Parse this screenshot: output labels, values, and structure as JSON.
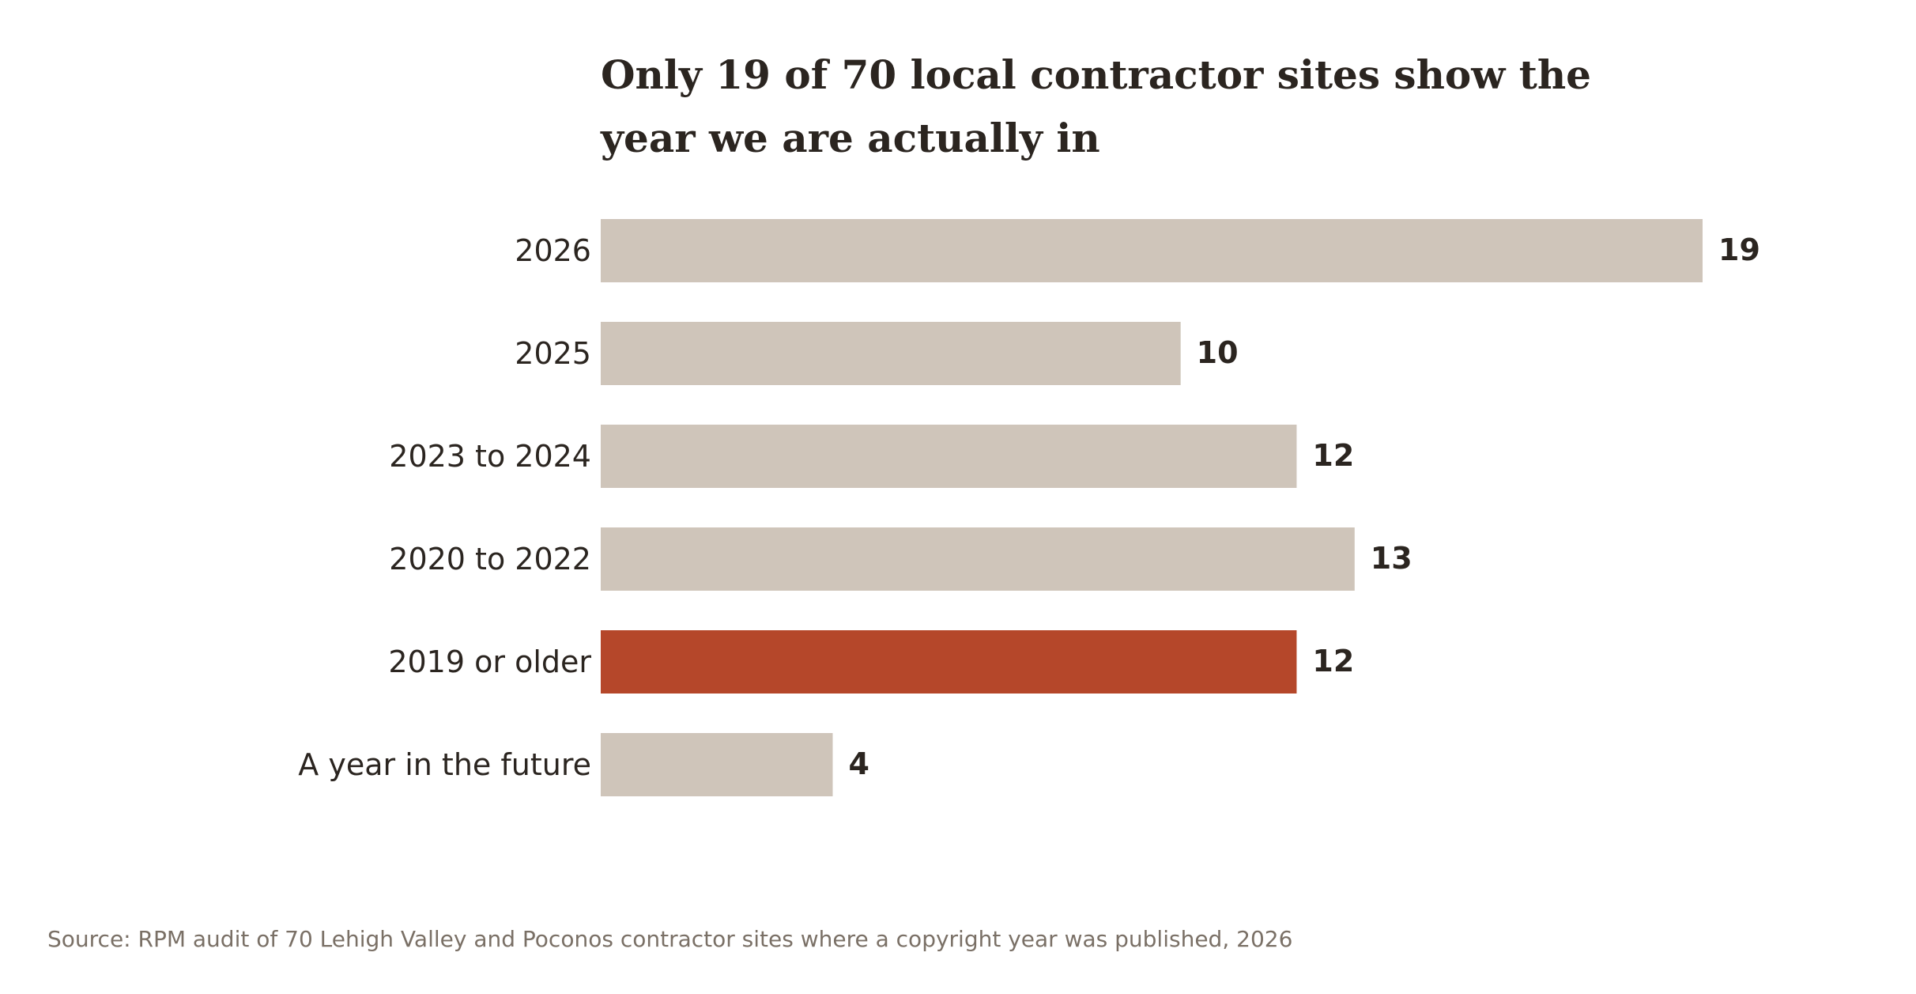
{
  "chart_data": {
    "type": "bar",
    "orientation": "horizontal",
    "title_lines": [
      "Only 19 of 70 local contractor sites show the",
      "year we are actually in"
    ],
    "categories": [
      "2026",
      "2025",
      "2023 to 2024",
      "2020 to 2022",
      "2019 or older",
      "A year in the future"
    ],
    "values": [
      19,
      10,
      12,
      13,
      12,
      4
    ],
    "highlight_index": 4,
    "xlim": [
      0,
      19
    ],
    "grid": false,
    "source": "Source: RPM audit of 70 Lehigh Valley and Poconos contractor sites where a copyright year was published, 2026"
  },
  "colors": {
    "bar": "#cfc5ba",
    "highlight": "#b5472a",
    "text": "#2b2520",
    "muted_text": "#7a7066"
  }
}
